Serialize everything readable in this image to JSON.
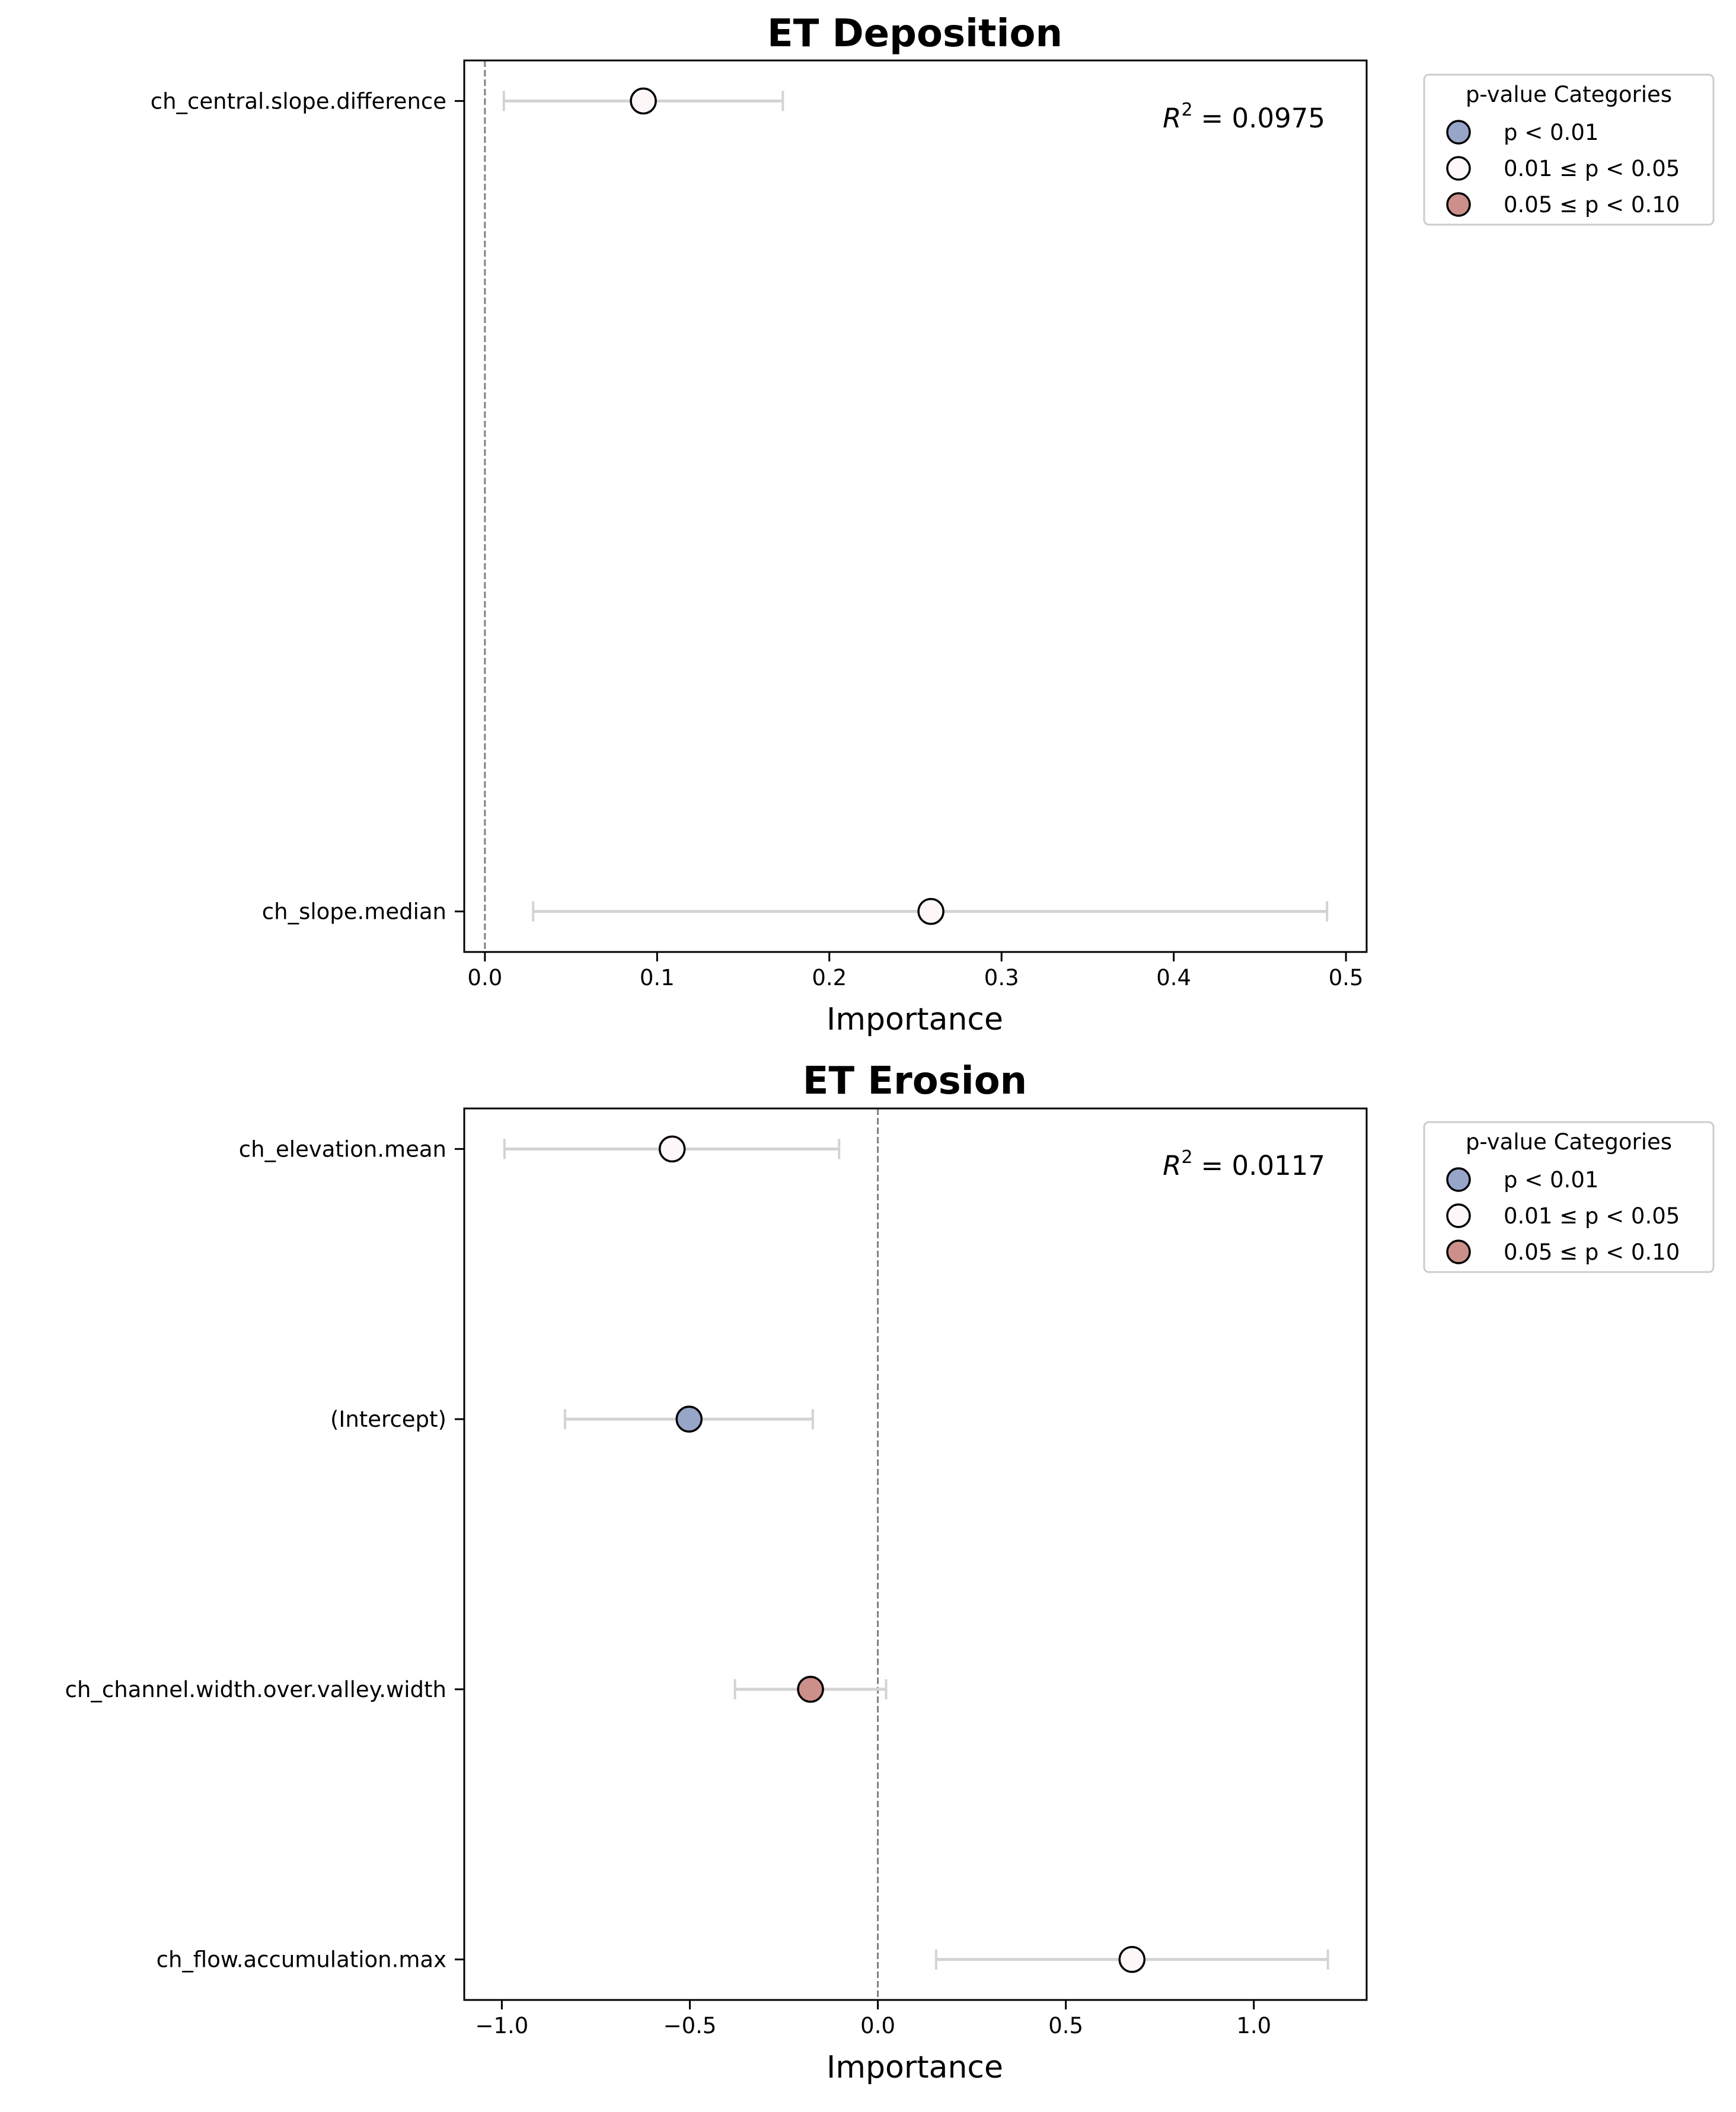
{
  "chart_data": [
    {
      "type": "forest",
      "title": "ET Deposition",
      "xlabel": "Importance",
      "xlim": [
        -0.012,
        0.512
      ],
      "xticks": [
        0.0,
        0.1,
        0.2,
        0.3,
        0.4,
        0.5
      ],
      "xtick_labels": [
        "0.0",
        "0.1",
        "0.2",
        "0.3",
        "0.4",
        "0.5"
      ],
      "reference_line": 0.0,
      "r2_label": "= 0.0975",
      "ylim": [
        -0.05,
        1.05
      ],
      "points": [
        {
          "label": "ch_central.slope.difference",
          "pos": 1,
          "estimate": 0.092,
          "ci_low": 0.011,
          "ci_high": 0.173,
          "category": "0.01 ≤ p < 0.05"
        },
        {
          "label": "ch_slope.median",
          "pos": 0,
          "estimate": 0.259,
          "ci_low": 0.028,
          "ci_high": 0.489,
          "category": "0.01 ≤ p < 0.05"
        }
      ],
      "legend": {
        "title": "p-value Categories",
        "position": "outside-top-right",
        "items": [
          {
            "label": "p < 0.01",
            "color": "#96a5c8"
          },
          {
            "label": "0.01 ≤ p < 0.05",
            "color": "#fdf7f7"
          },
          {
            "label": "0.05 ≤ p < 0.10",
            "color": "#cc8f8a"
          }
        ]
      }
    },
    {
      "type": "forest",
      "title": "ET Erosion",
      "xlabel": "Importance",
      "xlim": [
        -1.1,
        1.3
      ],
      "xticks": [
        -1.0,
        -0.5,
        0.0,
        0.5,
        1.0
      ],
      "xtick_labels": [
        "−1.0",
        "−0.5",
        "0.0",
        "0.5",
        "1.0"
      ],
      "reference_line": 0.0,
      "r2_label": "= 0.0117",
      "ylim": [
        -0.15,
        3.15
      ],
      "points": [
        {
          "label": "ch_elevation.mean",
          "pos": 3,
          "estimate": -0.547,
          "ci_low": -0.993,
          "ci_high": -0.103,
          "category": "0.01 ≤ p < 0.05"
        },
        {
          "label": "(Intercept)",
          "pos": 2,
          "estimate": -0.502,
          "ci_low": -0.832,
          "ci_high": -0.173,
          "category": "p < 0.01"
        },
        {
          "label": "ch_channel.width.over.valley.width",
          "pos": 1,
          "estimate": -0.179,
          "ci_low": -0.38,
          "ci_high": 0.022,
          "category": "0.05 ≤ p < 0.10"
        },
        {
          "label": "ch_flow.accumulation.max",
          "pos": 0,
          "estimate": 0.676,
          "ci_low": 0.155,
          "ci_high": 1.197,
          "category": "0.01 ≤ p < 0.05"
        }
      ],
      "legend": {
        "title": "p-value Categories",
        "position": "outside-top-right",
        "items": [
          {
            "label": "p < 0.01",
            "color": "#96a5c8"
          },
          {
            "label": "0.01 ≤ p < 0.05",
            "color": "#fdf7f7"
          },
          {
            "label": "0.05 ≤ p < 0.10",
            "color": "#cc8f8a"
          }
        ]
      }
    }
  ],
  "colors": {
    "error_bar": "#d3d3d3",
    "reference_line": "#808080",
    "marker_edge": "#000000",
    "axis": "#000000"
  }
}
